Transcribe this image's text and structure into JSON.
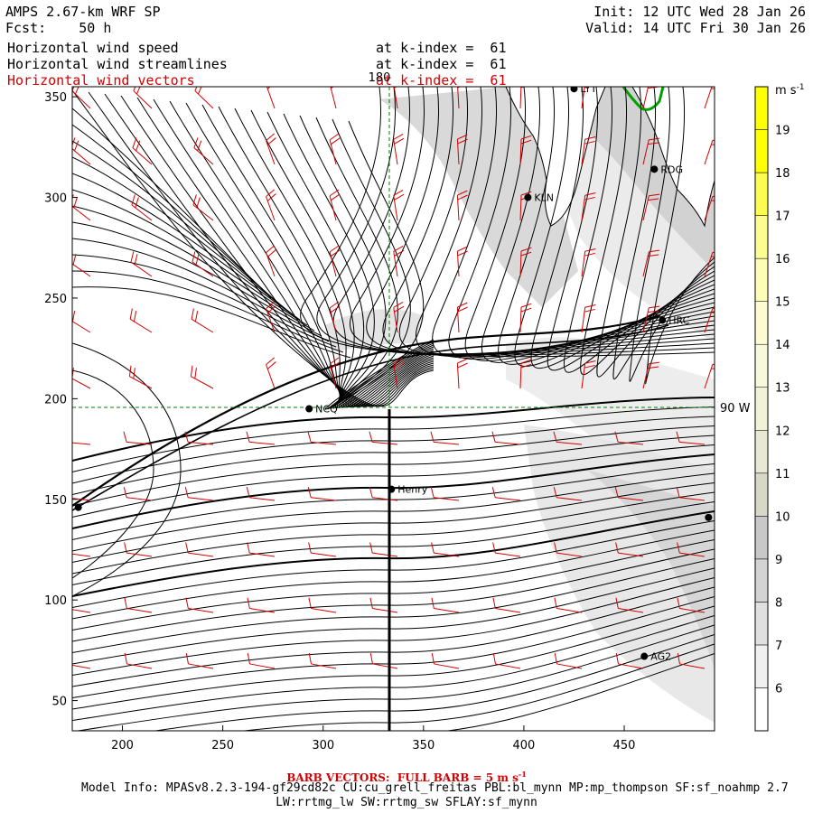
{
  "header": {
    "title": "AMPS 2.67-km WRF SP",
    "forecast": "Fcst:    50 h",
    "init": "Init: 12 UTC Wed 28 Jan 26",
    "valid": "Valid: 14 UTC Fri 30 Jan 26",
    "fields": [
      {
        "name": "Horizontal wind speed",
        "level": "at k-index =  61",
        "color": "#000000"
      },
      {
        "name": "Horizontal wind streamlines",
        "level": "at k-index =  61",
        "color": "#000000"
      },
      {
        "name": "Horizontal wind vectors",
        "level": "at k-index =  61",
        "color": "#d40000"
      }
    ]
  },
  "map": {
    "x_range": [
      175,
      495
    ],
    "y_range": [
      35,
      355
    ],
    "x_ticks": [
      200,
      250,
      300,
      350,
      400,
      450
    ],
    "y_ticks": [
      50,
      100,
      150,
      200,
      250,
      300,
      350
    ],
    "meridian_label": "180",
    "parallel_label": "90 W",
    "stations": [
      {
        "name": "LYT",
        "x": 425,
        "y": 354
      },
      {
        "name": "RDG",
        "x": 465,
        "y": 314
      },
      {
        "name": "KLN",
        "x": 402,
        "y": 300
      },
      {
        "name": "HRC",
        "x": 469,
        "y": 239
      },
      {
        "name": "NCQ",
        "x": 293,
        "y": 195
      },
      {
        "name": "Henry",
        "x": 334,
        "y": 155
      },
      {
        "name": "",
        "x": 178,
        "y": 146
      },
      {
        "name": "",
        "x": 492,
        "y": 141
      },
      {
        "name": "AG2",
        "x": 460,
        "y": 72
      }
    ]
  },
  "colorbar": {
    "units": "m s",
    "units_exp": "-1",
    "levels": [
      6,
      7,
      8,
      9,
      10,
      11,
      12,
      13,
      14,
      15,
      16,
      17,
      18,
      19
    ],
    "colors": [
      "#ffffff",
      "#f0f0f0",
      "#e0e0e0",
      "#d3d3d3",
      "#c8c8c8",
      "#d8d8c8",
      "#e8e8d4",
      "#f2f2d8",
      "#f8f8dc",
      "#fcfcd0",
      "#fdfdb8",
      "#fcfc90",
      "#fbfb50",
      "#ffff00",
      "#ffff00"
    ]
  },
  "footer": {
    "barb_note": "BARB VECTORS:  FULL BARB = 5 m s",
    "barb_exp": "-1",
    "model_info_1": "Model Info: MPASv8.2.3-194-gf29cd82c CU:cu_grell_freitas PBL:bl_mynn MP:mp_thompson SF:sf_noahmp 2.7",
    "model_info_2": "LW:rrtmg_lw SW:rrtmg_sw SFLAY:sf_mynn"
  }
}
